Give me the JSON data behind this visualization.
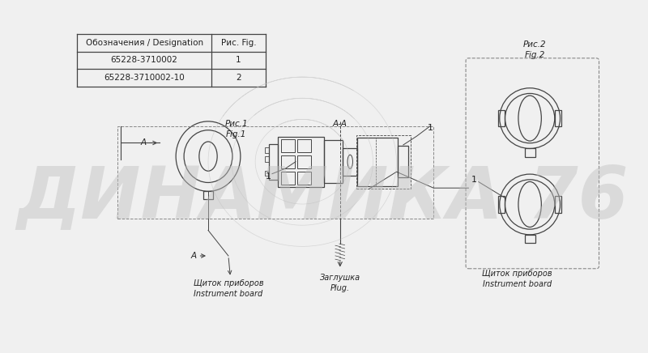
{
  "bg_color": "#f0f0f0",
  "table_header": [
    "Обозначения / Designation",
    "Рис. Fig."
  ],
  "table_rows": [
    [
      "65228-3710002",
      "1"
    ],
    [
      "65228-3710002-10",
      "2"
    ]
  ],
  "watermark_text": "ДИНАМИКА 76",
  "watermark_color": "#c0c0c0",
  "watermark_alpha": 0.45,
  "line_color": "#444444",
  "text_color": "#222222",
  "fig2_label": "Рис.2\nFig.2",
  "fig1_label": "Рис.1\nFig.1",
  "aa_label": "A-A",
  "label_щиток1": "Щиток приборов\nInstrument board",
  "label_щиток2": "Щиток приборов\nInstrument board",
  "label_заглушка": "Заглушка\nPlug.",
  "label_1": "1",
  "label_A": "A"
}
